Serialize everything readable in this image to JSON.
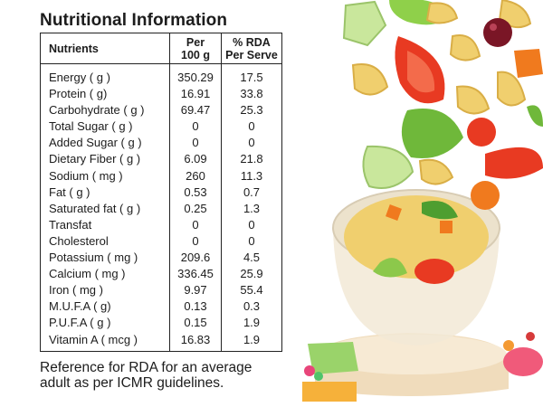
{
  "title": "Nutritional Information",
  "headers": {
    "nutrients": "Nutrients",
    "per_line1": "Per",
    "per_line2": "100 g",
    "rda_line1": "% RDA",
    "rda_line2": "Per Serve"
  },
  "rows": [
    {
      "name": "Energy ( g )",
      "per100": "350.29",
      "rda": "17.5"
    },
    {
      "name": "Protein ( g)",
      "per100": "16.91",
      "rda": "33.8"
    },
    {
      "name": "Carbohydrate ( g )",
      "per100": "69.47",
      "rda": "25.3"
    },
    {
      "name": "Total Sugar ( g )",
      "per100": "0",
      "rda": "0"
    },
    {
      "name": "Added Sugar ( g )",
      "per100": "0",
      "rda": "0"
    },
    {
      "name": "Dietary Fiber ( g )",
      "per100": "6.09",
      "rda": "21.8"
    },
    {
      "name": "Sodium ( mg )",
      "per100": "260",
      "rda": "11.3"
    },
    {
      "name": "Fat ( g )",
      "per100": "0.53",
      "rda": "0.7"
    },
    {
      "name": "Saturated fat ( g )",
      "per100": "0.25",
      "rda": "1.3"
    },
    {
      "name": "Transfat",
      "per100": "0",
      "rda": "0"
    },
    {
      "name": "Cholesterol",
      "per100": "0",
      "rda": "0"
    },
    {
      "name": "Potassium ( mg )",
      "per100": "209.6",
      "rda": "4.5"
    },
    {
      "name": "Calcium ( mg )",
      "per100": "336.45",
      "rda": "25.9"
    },
    {
      "name": "Iron ( mg )",
      "per100": "9.97",
      "rda": "55.4"
    },
    {
      "name": "M.U.F.A ( g)",
      "per100": "0.13",
      "rda": "0.3"
    },
    {
      "name": "P.U.F.A ( g )",
      "per100": "0.15",
      "rda": "1.9"
    },
    {
      "name": "Vitamin A ( mcg )",
      "per100": "16.83",
      "rda": "1.9"
    }
  ],
  "note_line1": "Reference for RDA for an average",
  "note_line2": "adult as per ICMR guidelines.",
  "colors": {
    "tomato": "#e83a22",
    "cucumber": "#c9e79c",
    "lettuce": "#6fb83a",
    "pasta": "#f0cf6e",
    "carrot": "#f07a1e",
    "olive": "#7a1626",
    "podium": "#f4e4c8",
    "podium_green": "#9ad36a"
  }
}
